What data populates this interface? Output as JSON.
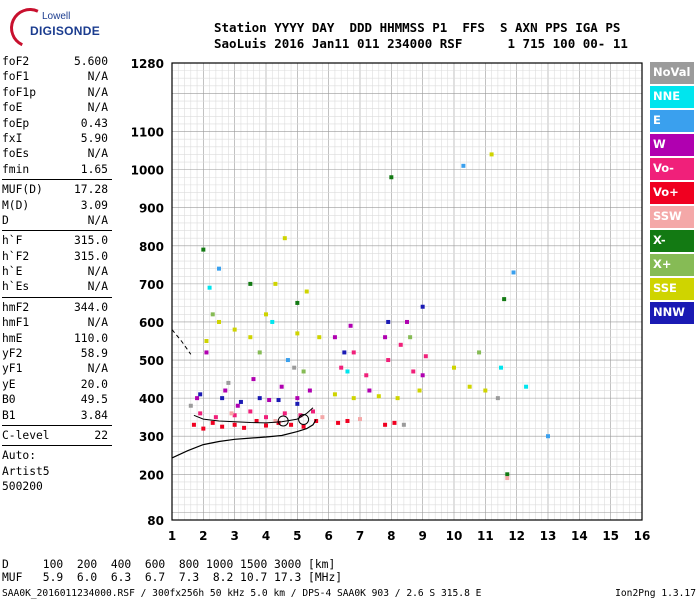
{
  "logo": {
    "line1": "Lowell",
    "line2": "DIGISONDE"
  },
  "header": {
    "line1": "Station YYYY DAY  DDD HHMMSS P1  FFS  S AXN PPS IGA PS",
    "line2": "SaoLuis 2016 Jan11 011 234000 RSF      1 715 100 00- 11"
  },
  "params": [
    {
      "k": "foF2",
      "v": "5.600"
    },
    {
      "k": "foF1",
      "v": "N/A"
    },
    {
      "k": "foF1p",
      "v": "N/A"
    },
    {
      "k": "foE",
      "v": "N/A"
    },
    {
      "k": "foEp",
      "v": "0.43"
    },
    {
      "k": "fxI",
      "v": "5.90"
    },
    {
      "k": "foEs",
      "v": "N/A"
    },
    {
      "k": "fmin",
      "v": "1.65"
    },
    {
      "k": "MUF(D)",
      "v": "17.28"
    },
    {
      "k": "M(D)",
      "v": "3.09"
    },
    {
      "k": "D",
      "v": "N/A"
    },
    {
      "k": "h`F",
      "v": "315.0"
    },
    {
      "k": "h`F2",
      "v": "315.0"
    },
    {
      "k": "h`E",
      "v": "N/A"
    },
    {
      "k": "h`Es",
      "v": "N/A"
    },
    {
      "k": "hmF2",
      "v": "344.0"
    },
    {
      "k": "hmF1",
      "v": "N/A"
    },
    {
      "k": "hmE",
      "v": "110.0"
    },
    {
      "k": "yF2",
      "v": "58.9"
    },
    {
      "k": "yF1",
      "v": "N/A"
    },
    {
      "k": "yE",
      "v": "20.0"
    },
    {
      "k": "B0",
      "v": "49.5"
    },
    {
      "k": "B1",
      "v": "3.84"
    },
    {
      "k": "C-level",
      "v": "22"
    },
    {
      "k": "Auto:",
      "v": ""
    },
    {
      "k": "Artist5",
      "v": ""
    },
    {
      "k": "500200",
      "v": ""
    }
  ],
  "legend": [
    {
      "label": "NoVal",
      "color": "#9b9b9b"
    },
    {
      "label": "NNE",
      "color": "#00e5ee"
    },
    {
      "label": "E",
      "color": "#3aa0ee"
    },
    {
      "label": "W",
      "color": "#b000b0"
    },
    {
      "label": "Vo-",
      "color": "#f0207a"
    },
    {
      "label": "Vo+",
      "color": "#f00020"
    },
    {
      "label": "SSW",
      "color": "#f4a8a8"
    },
    {
      "label": "X-",
      "color": "#137a13"
    },
    {
      "label": "X+",
      "color": "#86bb55"
    },
    {
      "label": "SSE",
      "color": "#cfd400"
    },
    {
      "label": "NNW",
      "color": "#1a1ab4"
    }
  ],
  "footer": {
    "line1": "D     100  200  400  600  800 1000 1500 3000 [km]",
    "line2": "MUF   5.9  6.0  6.3  6.7  7.3  8.2 10.7 17.3 [MHz]",
    "bottom_left": "SAA0K_2016011234000.RSF / 300fx256h 50 kHz 5.0 km / DPS-4 SAA0K 903 / 2.6 S 315.8 E",
    "bottom_right": "Ion2Png 1.3.17"
  },
  "chart_data": {
    "type": "scatter",
    "title": "",
    "xlabel": "",
    "ylabel": "",
    "xlim": [
      1,
      16
    ],
    "ylim": [
      80,
      1280
    ],
    "x_ticks": [
      1,
      2,
      3,
      4,
      5,
      6,
      7,
      8,
      9,
      10,
      11,
      12,
      13,
      14,
      15,
      16
    ],
    "y_ticks": [
      80,
      200,
      300,
      400,
      500,
      600,
      700,
      800,
      900,
      1000,
      1100,
      1280
    ],
    "grid": true,
    "legend_placement": "right",
    "series": [
      {
        "name": "Vo+",
        "color": "#f00020",
        "points": [
          [
            1.7,
            330
          ],
          [
            2.0,
            320
          ],
          [
            2.3,
            335
          ],
          [
            2.6,
            325
          ],
          [
            3.0,
            330
          ],
          [
            3.3,
            322
          ],
          [
            3.7,
            340
          ],
          [
            4.0,
            328
          ],
          [
            4.4,
            335
          ],
          [
            4.8,
            330
          ],
          [
            5.2,
            325
          ],
          [
            5.6,
            340
          ],
          [
            6.3,
            335
          ],
          [
            6.6,
            340
          ],
          [
            7.8,
            330
          ],
          [
            8.1,
            335
          ]
        ]
      },
      {
        "name": "Vo-",
        "color": "#f0207a",
        "points": [
          [
            1.9,
            360
          ],
          [
            2.4,
            350
          ],
          [
            3.0,
            355
          ],
          [
            3.5,
            365
          ],
          [
            4.0,
            350
          ],
          [
            4.6,
            360
          ],
          [
            5.1,
            355
          ],
          [
            5.5,
            365
          ],
          [
            6.4,
            480
          ],
          [
            6.8,
            520
          ],
          [
            7.2,
            460
          ],
          [
            7.9,
            500
          ],
          [
            8.3,
            540
          ],
          [
            8.7,
            470
          ],
          [
            9.1,
            510
          ]
        ]
      },
      {
        "name": "W",
        "color": "#b000b0",
        "points": [
          [
            1.8,
            400
          ],
          [
            2.1,
            520
          ],
          [
            2.7,
            420
          ],
          [
            3.1,
            380
          ],
          [
            3.6,
            450
          ],
          [
            4.1,
            395
          ],
          [
            4.5,
            430
          ],
          [
            5.0,
            400
          ],
          [
            5.4,
            420
          ],
          [
            6.2,
            560
          ],
          [
            6.7,
            590
          ],
          [
            7.3,
            420
          ],
          [
            7.8,
            560
          ],
          [
            8.5,
            600
          ],
          [
            9.0,
            460
          ]
        ]
      },
      {
        "name": "SSE",
        "color": "#cfd400",
        "points": [
          [
            2.1,
            550
          ],
          [
            2.5,
            600
          ],
          [
            3.0,
            580
          ],
          [
            3.5,
            560
          ],
          [
            4.0,
            620
          ],
          [
            4.3,
            700
          ],
          [
            4.6,
            820
          ],
          [
            5.0,
            570
          ],
          [
            5.3,
            680
          ],
          [
            5.7,
            560
          ],
          [
            6.2,
            410
          ],
          [
            6.8,
            400
          ],
          [
            7.6,
            405
          ],
          [
            8.2,
            400
          ],
          [
            8.9,
            420
          ],
          [
            10.0,
            480
          ],
          [
            10.5,
            430
          ],
          [
            11.0,
            420
          ],
          [
            11.2,
            1040
          ]
        ]
      },
      {
        "name": "NNW",
        "color": "#1a1ab4",
        "points": [
          [
            1.9,
            410
          ],
          [
            2.6,
            400
          ],
          [
            3.2,
            390
          ],
          [
            3.8,
            400
          ],
          [
            4.4,
            395
          ],
          [
            5.0,
            385
          ],
          [
            6.5,
            520
          ],
          [
            7.9,
            600
          ],
          [
            9.0,
            640
          ]
        ]
      },
      {
        "name": "X-",
        "color": "#137a13",
        "points": [
          [
            2.0,
            790
          ],
          [
            3.5,
            700
          ],
          [
            5.0,
            650
          ],
          [
            8.0,
            980
          ],
          [
            11.6,
            660
          ],
          [
            11.7,
            200
          ]
        ]
      },
      {
        "name": "X+",
        "color": "#86bb55",
        "points": [
          [
            2.3,
            620
          ],
          [
            3.8,
            520
          ],
          [
            5.2,
            470
          ],
          [
            8.6,
            560
          ],
          [
            10.8,
            520
          ]
        ]
      },
      {
        "name": "NNE",
        "color": "#00e5ee",
        "points": [
          [
            2.2,
            690
          ],
          [
            4.2,
            600
          ],
          [
            6.6,
            470
          ],
          [
            11.5,
            480
          ],
          [
            12.3,
            430
          ]
        ]
      },
      {
        "name": "E",
        "color": "#3aa0ee",
        "points": [
          [
            2.5,
            740
          ],
          [
            4.7,
            500
          ],
          [
            10.3,
            1010
          ],
          [
            11.9,
            730
          ],
          [
            13.0,
            300
          ]
        ]
      },
      {
        "name": "NoVal",
        "color": "#9b9b9b",
        "points": [
          [
            1.6,
            380
          ],
          [
            2.8,
            440
          ],
          [
            4.9,
            480
          ],
          [
            8.4,
            330
          ],
          [
            11.4,
            400
          ]
        ]
      },
      {
        "name": "SSW",
        "color": "#f4a8a8",
        "points": [
          [
            2.9,
            360
          ],
          [
            4.3,
            340
          ],
          [
            5.8,
            350
          ],
          [
            7.0,
            345
          ],
          [
            11.7,
            190
          ]
        ]
      }
    ],
    "profile_curve": [
      [
        1,
        243
      ],
      [
        1.5,
        262
      ],
      [
        2.0,
        278
      ],
      [
        2.5,
        286
      ],
      [
        3.0,
        292
      ],
      [
        3.5,
        295
      ],
      [
        4.0,
        298
      ],
      [
        4.5,
        302
      ],
      [
        5.0,
        312
      ],
      [
        5.3,
        320
      ],
      [
        5.5,
        330
      ],
      [
        5.6,
        344
      ]
    ],
    "trace_curve": [
      [
        1.7,
        355
      ],
      [
        2.0,
        345
      ],
      [
        2.5,
        340
      ],
      [
        3.0,
        338
      ],
      [
        3.5,
        336
      ],
      [
        4.0,
        335
      ],
      [
        4.5,
        338
      ],
      [
        5.0,
        345
      ],
      [
        5.3,
        360
      ],
      [
        5.5,
        375
      ]
    ],
    "dashed_curve": [
      [
        1,
        580
      ],
      [
        1.3,
        550
      ],
      [
        1.6,
        515
      ]
    ]
  }
}
